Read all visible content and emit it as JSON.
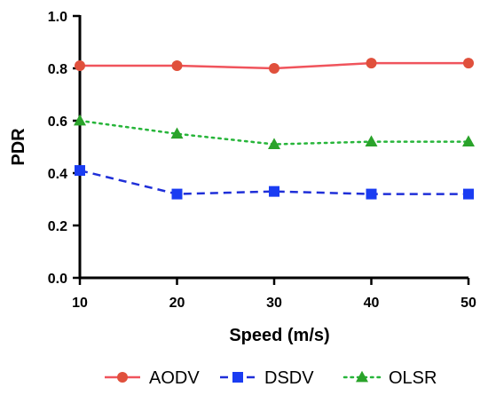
{
  "chart_data": {
    "type": "line",
    "xlabel": "Speed (m/s)",
    "ylabel": "PDR",
    "x": [
      10,
      20,
      30,
      40,
      50
    ],
    "xlim": [
      10,
      50
    ],
    "ylim": [
      0,
      1.0
    ],
    "xticks": [
      "10",
      "20",
      "30",
      "40",
      "50"
    ],
    "yticks": [
      "0.0",
      "0.2",
      "0.4",
      "0.6",
      "0.8",
      "1.0"
    ],
    "grid": false,
    "legend_position": "bottom",
    "series": [
      {
        "name": "AODV",
        "values": [
          0.81,
          0.81,
          0.8,
          0.82,
          0.82
        ],
        "color": "#f0545c",
        "marker_color": "#e0503c",
        "line_style": "solid",
        "marker": "circle"
      },
      {
        "name": "DSDV",
        "values": [
          0.41,
          0.32,
          0.33,
          0.32,
          0.32
        ],
        "color": "#1f2fd8",
        "marker_color": "#1a3cf2",
        "line_style": "dashed",
        "marker": "square"
      },
      {
        "name": "OLSR",
        "values": [
          0.6,
          0.55,
          0.51,
          0.52,
          0.52
        ],
        "color": "#27b53a",
        "marker_color": "#2aa32a",
        "line_style": "dotted",
        "marker": "triangle"
      }
    ]
  }
}
